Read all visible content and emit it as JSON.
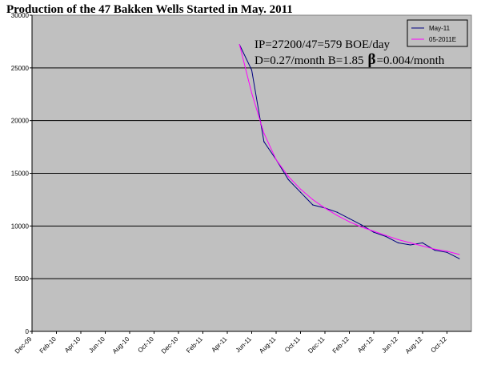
{
  "chart_data": {
    "type": "line",
    "title": "Production of the 47 Bakken Wells  Started in May. 2011",
    "xlabel": "",
    "ylabel": "",
    "ylim": [
      0,
      30000
    ],
    "y_ticks": [
      "0",
      "5000",
      "10000",
      "15000",
      "20000",
      "25000",
      "30000"
    ],
    "x_ticks": [
      "Dec-09",
      "Feb-10",
      "Apr-10",
      "Jun-10",
      "Aug-10",
      "Oct-10",
      "Dec-10",
      "Feb-11",
      "Apr-11",
      "Jun-11",
      "Aug-11",
      "Oct-11",
      "Dec-11",
      "Feb-12",
      "Apr-12",
      "Jun-12",
      "Aug-12",
      "Oct-12"
    ],
    "grid": "horizontal",
    "legend_position": "top-right",
    "plot_background": "#c0c0c0",
    "series": [
      {
        "name": "May-11",
        "color": "#000080",
        "x": [
          "May-11",
          "Jun-11",
          "Jul-11",
          "Aug-11",
          "Sep-11",
          "Oct-11",
          "Nov-11",
          "Dec-11",
          "Jan-12",
          "Feb-12",
          "Mar-12",
          "Apr-12",
          "May-12",
          "Jun-12",
          "Jul-12",
          "Aug-12",
          "Sep-12",
          "Oct-12",
          "Nov-12"
        ],
        "values": [
          27200,
          24800,
          18000,
          16300,
          14400,
          13200,
          12000,
          11700,
          11300,
          10700,
          10100,
          9400,
          9000,
          8400,
          8200,
          8400,
          7700,
          7500,
          6900
        ]
      },
      {
        "name": "05-2011E",
        "color": "#ff00ff",
        "x": [
          "May-11",
          "Jun-11",
          "Jul-11",
          "Aug-11",
          "Sep-11",
          "Oct-11",
          "Nov-11",
          "Dec-11",
          "Jan-12",
          "Feb-12",
          "Mar-12",
          "Apr-12",
          "May-12",
          "Jun-12",
          "Jul-12",
          "Aug-12",
          "Sep-12",
          "Oct-12",
          "Nov-12"
        ],
        "values": [
          27200,
          22600,
          18800,
          16300,
          14700,
          13500,
          12500,
          11700,
          11000,
          10400,
          9900,
          9500,
          9100,
          8700,
          8400,
          8100,
          7800,
          7600,
          7300
        ]
      }
    ],
    "annotations": [
      "IP=27200/47=579 BOE/day",
      "D=0.27/month B=1.85",
      "β",
      "=0.004/month"
    ]
  }
}
